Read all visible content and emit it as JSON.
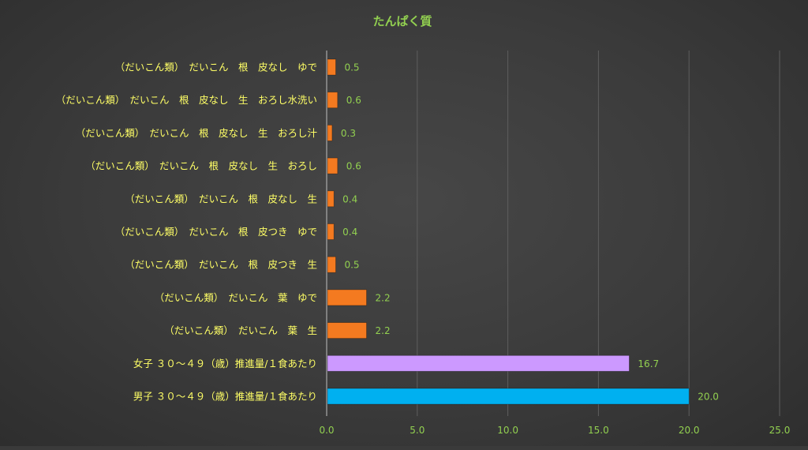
{
  "colors": {
    "title": "#92d050",
    "category_labels": "#ffff66",
    "tick_labels": "#92d050",
    "data_labels": "#92d050",
    "gridline": "#5e5e5e",
    "axis_line": "#bfbfbf",
    "bar_orange": "#f47a20",
    "bar_purple": "#cc99ff",
    "bar_blue": "#00b0f0"
  },
  "chart_data": {
    "type": "bar",
    "orientation": "horizontal",
    "title": "たんぱく質",
    "xlabel": "",
    "ylabel": "",
    "xlim": [
      0,
      25
    ],
    "x_ticks": [
      0,
      5,
      10,
      15,
      20,
      25
    ],
    "x_tick_labels": [
      "0.0",
      "5.0",
      "10.0",
      "15.0",
      "20.0",
      "25.0"
    ],
    "grid": "vertical",
    "legend": "none",
    "categories": [
      "（だいこん類）　だいこん　根　皮なし　ゆで",
      "（だいこん類）　だいこん　根　皮なし　生　おろし水洗い",
      "（だいこん類）　だいこん　根　皮なし　生　おろし汁",
      "（だいこん類）　だいこん　根　皮なし　生　おろし",
      "（だいこん類）　だいこん　根　皮なし　生",
      "（だいこん類）　だいこん　根　皮つき　ゆで",
      "（だいこん類）　だいこん　根　皮つき　生",
      "（だいこん類）　だいこん　葉　ゆで",
      "（だいこん類）　だいこん　葉　生",
      "女子 ３０～４９（歳）推進量/１食あたり",
      "男子 ３０～４９（歳）推進量/１食あたり"
    ],
    "values": [
      0.5,
      0.6,
      0.3,
      0.6,
      0.4,
      0.4,
      0.5,
      2.2,
      2.2,
      16.7,
      20.0
    ],
    "value_labels": [
      "0.5",
      "0.6",
      "0.3",
      "0.6",
      "0.4",
      "0.4",
      "0.5",
      "2.2",
      "2.2",
      "16.7",
      "20.0"
    ],
    "bar_colors": [
      "#f47a20",
      "#f47a20",
      "#f47a20",
      "#f47a20",
      "#f47a20",
      "#f47a20",
      "#f47a20",
      "#f47a20",
      "#f47a20",
      "#cc99ff",
      "#00b0f0"
    ]
  }
}
